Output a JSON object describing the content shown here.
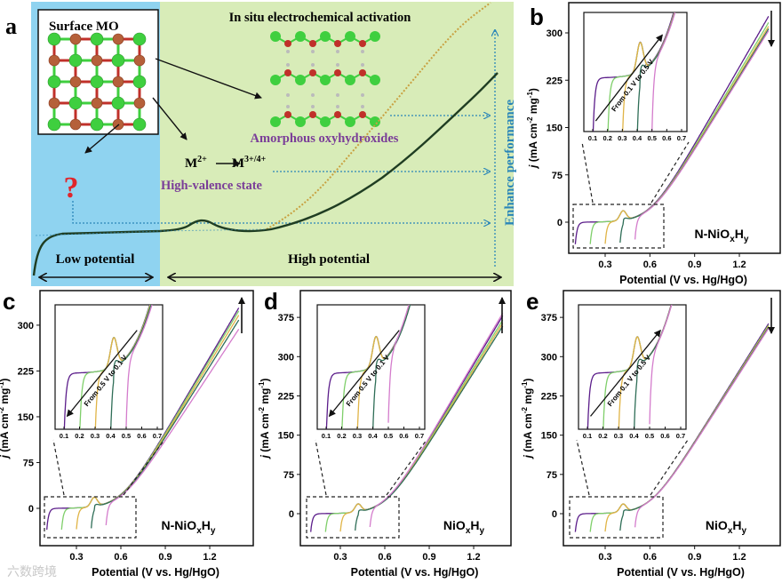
{
  "panel_a": {
    "label": "a",
    "surface_title": "Surface MO",
    "activation_title": "In situ electrochemical activation",
    "amorphous_label": "Amorphous oxyhydroxides",
    "valence_from": "M",
    "valence_from_sup": "2+",
    "valence_to": "M",
    "valence_to_sup": "3+/4+",
    "valence_label": "High-valence state",
    "question_mark": "?",
    "low_potential": "Low potential",
    "high_potential": "High potential",
    "enhance_label": "Enhance performance",
    "colors": {
      "low_bg": "#8fd3f0",
      "high_bg": "#d8ecb8",
      "purple": "#7a3d98",
      "blue": "#2a86b8",
      "red": "#e0262b",
      "curve": "#1f3d22",
      "dotted": "#c8a040",
      "metal": "#3fcf3f",
      "oxygen": "#c0302a"
    }
  },
  "watermark": "六数跨境",
  "chart_data": [
    {
      "panel": "b",
      "type": "line",
      "xlabel": "Potential (V vs. Hg/HgO)",
      "ylabel": {
        "j": "j",
        "unit": " (mA cm",
        "sup1": "-2",
        "mid": " mg",
        "sup2": "-1",
        "end": ")"
      },
      "xticks": [
        "0.3",
        "0.6",
        "0.9",
        "1.2"
      ],
      "yticks": [
        "0",
        "75",
        "150",
        "225",
        "300"
      ],
      "xlim": [
        0.1,
        1.4
      ],
      "ylim": [
        -40,
        330
      ],
      "material": {
        "a": "N-NiO",
        "b": "x",
        "c": "H",
        "d": "y"
      },
      "trend_arrow": "down",
      "inset": {
        "xticks": [
          "0.1",
          "0.2",
          "0.3",
          "0.4",
          "0.5",
          "0.6",
          "0.7"
        ],
        "annotation": "From 0.1 V to 0.5 V",
        "arrow": "forward"
      },
      "series": [
        {
          "start_potential": 0.1,
          "j_end": 328,
          "color": "#5b1d8a"
        },
        {
          "start_potential": 0.2,
          "j_end": 318,
          "color": "#7fcf6a"
        },
        {
          "start_potential": 0.3,
          "j_end": 312,
          "color": "#e0b446"
        },
        {
          "start_potential": 0.4,
          "j_end": 308,
          "color": "#2f6e57"
        },
        {
          "start_potential": 0.5,
          "j_end": 305,
          "color": "#d47ccc"
        }
      ]
    },
    {
      "panel": "c",
      "type": "line",
      "xlabel": "Potential (V vs. Hg/HgO)",
      "ylabel": {
        "j": "j",
        "unit": " (mA cm",
        "sup1": "-2",
        "mid": " mg",
        "sup2": "-1",
        "end": ")"
      },
      "xticks": [
        "0.3",
        "0.6",
        "0.9",
        "1.2"
      ],
      "yticks": [
        "0",
        "75",
        "150",
        "225",
        "300"
      ],
      "xlim": [
        0.1,
        1.4
      ],
      "ylim": [
        -40,
        330
      ],
      "material": {
        "a": "N-NiO",
        "b": "x",
        "c": "H",
        "d": "y"
      },
      "trend_arrow": "up",
      "inset": {
        "xticks": [
          "0.1",
          "0.2",
          "0.3",
          "0.4",
          "0.5",
          "0.6",
          "0.7"
        ],
        "annotation": "From 0.5 V to 0.1 V",
        "arrow": "backward"
      },
      "series": [
        {
          "start_potential": 0.1,
          "j_end": 330,
          "color": "#5b1d8a"
        },
        {
          "start_potential": 0.2,
          "j_end": 325,
          "color": "#7fcf6a"
        },
        {
          "start_potential": 0.3,
          "j_end": 318,
          "color": "#e0b446"
        },
        {
          "start_potential": 0.4,
          "j_end": 310,
          "color": "#2f6e57"
        },
        {
          "start_potential": 0.5,
          "j_end": 295,
          "color": "#d47ccc"
        }
      ]
    },
    {
      "panel": "d",
      "type": "line",
      "xlabel": "Potential (V vs. Hg/HgO)",
      "ylabel": {
        "j": "j",
        "unit": " (mA cm",
        "sup1": "-2",
        "mid": " mg",
        "sup2": "-1",
        "end": ")"
      },
      "xticks": [
        "0.3",
        "0.6",
        "0.9",
        "1.2"
      ],
      "yticks": [
        "0",
        "75",
        "150",
        "225",
        "300",
        "375"
      ],
      "xlim": [
        0.1,
        1.4
      ],
      "ylim": [
        -40,
        400
      ],
      "material": {
        "a": "NiO",
        "b": "x",
        "c": "H",
        "d": "y"
      },
      "trend_arrow": "up",
      "inset": {
        "xticks": [
          "0.1",
          "0.2",
          "0.3",
          "0.4",
          "0.5",
          "0.6",
          "0.7"
        ],
        "annotation": "From 0.5 V to 0.1 V",
        "arrow": "backward"
      },
      "series": [
        {
          "start_potential": 0.1,
          "j_end": 380,
          "color": "#5b1d8a"
        },
        {
          "start_potential": 0.2,
          "j_end": 372,
          "color": "#7fcf6a"
        },
        {
          "start_potential": 0.3,
          "j_end": 366,
          "color": "#e0b446"
        },
        {
          "start_potential": 0.4,
          "j_end": 360,
          "color": "#2f6e57"
        },
        {
          "start_potential": 0.5,
          "j_end": 385,
          "color": "#d47ccc"
        }
      ]
    },
    {
      "panel": "e",
      "type": "line",
      "xlabel": "Potential (V vs. Hg/HgO)",
      "ylabel": {
        "j": "j",
        "unit": " (mA cm",
        "sup1": "-2",
        "mid": " mg",
        "sup2": "-1",
        "end": ")"
      },
      "xticks": [
        "0.3",
        "0.6",
        "0.9",
        "1.2"
      ],
      "yticks": [
        "0",
        "75",
        "150",
        "225",
        "300",
        "375"
      ],
      "xlim": [
        0.1,
        1.4
      ],
      "ylim": [
        -40,
        400
      ],
      "material": {
        "a": "NiO",
        "b": "x",
        "c": "H",
        "d": "y"
      },
      "trend_arrow": "down",
      "inset": {
        "xticks": [
          "0.1",
          "0.2",
          "0.3",
          "0.4",
          "0.5",
          "0.6",
          "0.7"
        ],
        "annotation": "From 0.1 V to 0.5 V",
        "arrow": "forward"
      },
      "series": [
        {
          "start_potential": 0.1,
          "j_end": 365,
          "color": "#5b1d8a"
        },
        {
          "start_potential": 0.2,
          "j_end": 362,
          "color": "#7fcf6a"
        },
        {
          "start_potential": 0.3,
          "j_end": 360,
          "color": "#e0b446"
        },
        {
          "start_potential": 0.4,
          "j_end": 358,
          "color": "#2f6e57"
        },
        {
          "start_potential": 0.5,
          "j_end": 356,
          "color": "#d47ccc"
        }
      ]
    }
  ]
}
